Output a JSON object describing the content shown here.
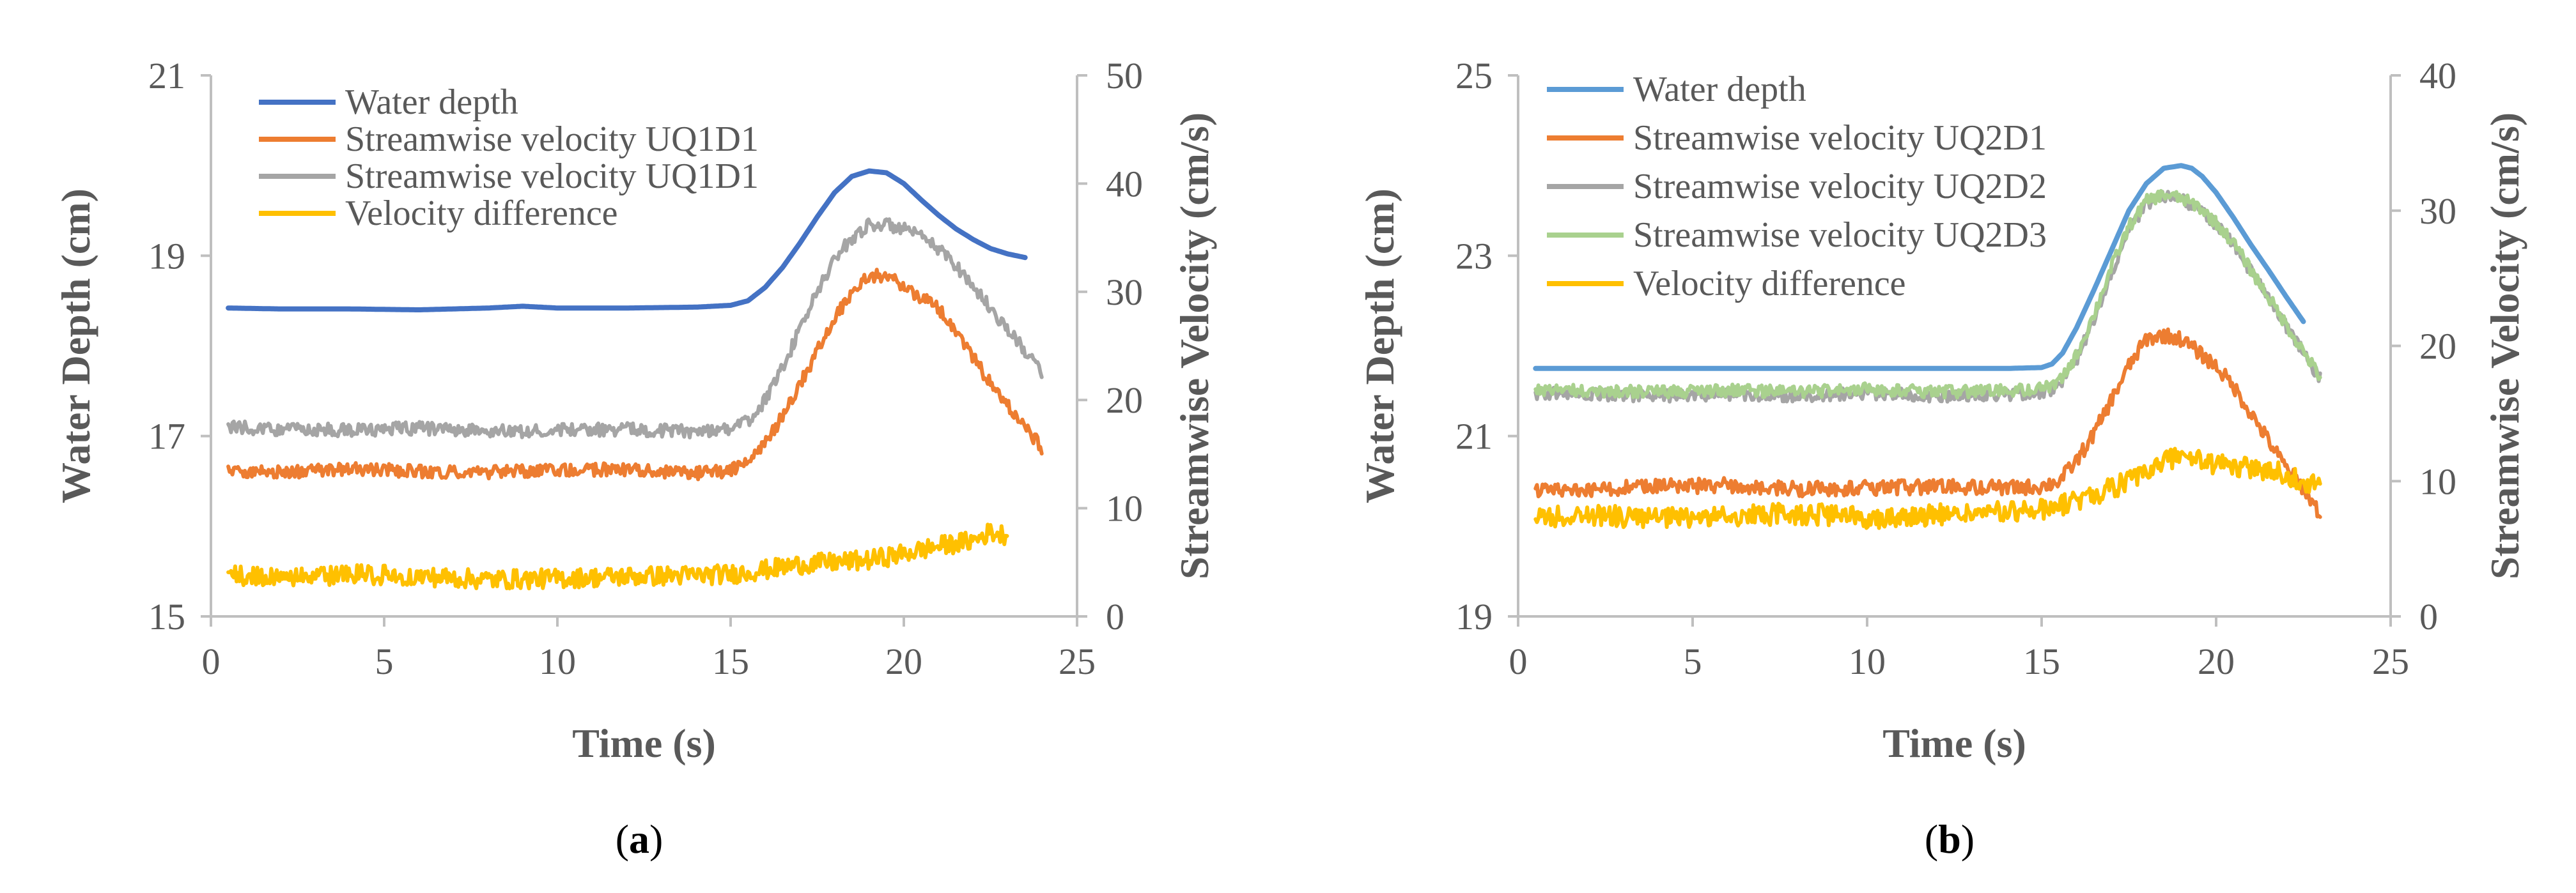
{
  "chart_data": [
    {
      "type": "line",
      "panel_label": "a",
      "xlabel": "Time (s)",
      "ylabel": "Water Depth (cm)",
      "y2label": "Streamwise Velocity (cm/s)",
      "xlim": [
        0,
        25
      ],
      "ylim": [
        15,
        21
      ],
      "y2lim": [
        0,
        50
      ],
      "xticks": [
        "0",
        "5",
        "10",
        "15",
        "20",
        "25"
      ],
      "yticks": [
        "15",
        "17",
        "19",
        "21"
      ],
      "y2ticks": [
        "0",
        "10",
        "20",
        "30",
        "40",
        "50"
      ],
      "grid": false,
      "legend_position": "top-left",
      "series": [
        {
          "name": "Water depth",
          "axis": "left",
          "color": "#4472C4",
          "noise": 0,
          "x": [
            0.5,
            2,
            4,
            6,
            8,
            9,
            10,
            12,
            14,
            15,
            15.5,
            16,
            16.5,
            17,
            17.5,
            18,
            18.5,
            19,
            19.5,
            20,
            20.5,
            21,
            21.5,
            22,
            22.5,
            23,
            23.5
          ],
          "y": [
            18.42,
            18.41,
            18.41,
            18.4,
            18.42,
            18.44,
            18.42,
            18.42,
            18.43,
            18.45,
            18.5,
            18.65,
            18.87,
            19.14,
            19.43,
            19.7,
            19.88,
            19.94,
            19.92,
            19.8,
            19.62,
            19.45,
            19.3,
            19.18,
            19.08,
            19.02,
            18.98
          ]
        },
        {
          "name": "Streamwise velocity UQ1D1",
          "axis": "right",
          "color": "#ED7D31",
          "noise": 0.6,
          "x": [
            0.5,
            2,
            4,
            6,
            8,
            10,
            12,
            14,
            15,
            15.5,
            16,
            16.5,
            17,
            17.5,
            18,
            18.5,
            19,
            19.5,
            20,
            20.5,
            21,
            21.5,
            22,
            22.5,
            23,
            23.5,
            24
          ],
          "y": [
            13.5,
            13.3,
            13.6,
            13.4,
            13.3,
            13.5,
            13.6,
            13.2,
            13.5,
            14.2,
            16,
            18.5,
            21.5,
            24.5,
            27.5,
            30,
            31.5,
            31.5,
            30.5,
            29.5,
            28.5,
            26.5,
            24,
            21.5,
            19.5,
            17.5,
            15.5
          ]
        },
        {
          "name": "Streamwise velocity UQ1D1",
          "axis": "right",
          "color": "#A5A5A5",
          "noise": 0.6,
          "x": [
            0.5,
            2,
            4,
            6,
            8,
            10,
            12,
            14,
            15,
            15.5,
            16,
            16.5,
            17,
            17.5,
            18,
            18.5,
            19,
            19.5,
            20,
            20.5,
            21,
            21.5,
            22,
            22.5,
            23,
            23.5,
            24
          ],
          "y": [
            17.5,
            17.3,
            17.2,
            17.4,
            17.1,
            17.2,
            17.3,
            17.1,
            17.4,
            18,
            20,
            23,
            26.5,
            30,
            33,
            35,
            36.2,
            36.2,
            35.8,
            35,
            34,
            32.5,
            30.5,
            28.5,
            26.5,
            24.5,
            22.5
          ]
        },
        {
          "name": "Velocity difference",
          "axis": "right",
          "color": "#FFC000",
          "noise": 0.9,
          "x": [
            0.5,
            2,
            4,
            6,
            8,
            10,
            12,
            14,
            15,
            16,
            17,
            18,
            19,
            20,
            21,
            22,
            22.5,
            23
          ],
          "y": [
            3.8,
            3.5,
            3.9,
            3.7,
            3.4,
            3.5,
            3.7,
            3.8,
            3.9,
            4.3,
            4.8,
            5,
            5.2,
            5.8,
            6.5,
            7,
            7.8,
            7.5
          ]
        }
      ]
    },
    {
      "type": "line",
      "panel_label": "b",
      "xlabel": "Time (s)",
      "ylabel": "Water Depth (cm)",
      "y2label": "Streamwise Velocity (cm/s)",
      "xlim": [
        0,
        25
      ],
      "ylim": [
        19,
        25
      ],
      "y2lim": [
        0,
        40
      ],
      "xticks": [
        "0",
        "5",
        "10",
        "15",
        "20",
        "25"
      ],
      "yticks": [
        "19",
        "21",
        "23",
        "25"
      ],
      "y2ticks": [
        "0",
        "10",
        "20",
        "30",
        "40"
      ],
      "grid": false,
      "legend_position": "top-left",
      "series": [
        {
          "name": "Water depth",
          "axis": "left",
          "color": "#5B9BD5",
          "noise": 0,
          "x": [
            0.5,
            3,
            6,
            9,
            12,
            14,
            15,
            15.3,
            15.6,
            16,
            16.5,
            17,
            17.5,
            18,
            18.5,
            19,
            19.3,
            19.6,
            20,
            20.5,
            21,
            21.5,
            22,
            22.5
          ],
          "y": [
            21.75,
            21.75,
            21.75,
            21.75,
            21.75,
            21.75,
            21.76,
            21.8,
            21.92,
            22.2,
            22.62,
            23.06,
            23.5,
            23.8,
            23.97,
            24.0,
            23.97,
            23.88,
            23.7,
            23.42,
            23.12,
            22.84,
            22.55,
            22.27
          ]
        },
        {
          "name": "Streamwise velocity UQ2D1",
          "axis": "right",
          "color": "#ED7D31",
          "noise": 0.55,
          "x": [
            0.5,
            2,
            4,
            6,
            8,
            10,
            12,
            14,
            15,
            15.5,
            16,
            16.5,
            17,
            17.5,
            18,
            18.5,
            19,
            19.5,
            20,
            20.5,
            21,
            21.5,
            22,
            22.5,
            23
          ],
          "y": [
            9.3,
            9.4,
            9.6,
            9.7,
            9.4,
            9.5,
            9.6,
            9.5,
            9.6,
            10,
            11.5,
            13.5,
            16,
            18.5,
            20.5,
            20.8,
            20.5,
            19.5,
            18.5,
            17,
            15,
            13,
            11,
            9.5,
            7.5
          ]
        },
        {
          "name": "Streamwise velocity UQ2D2",
          "axis": "right",
          "color": "#A5A5A5",
          "noise": 0.45,
          "x": [
            0.5,
            2,
            4,
            6,
            8,
            10,
            12,
            14,
            15,
            15.5,
            16,
            16.5,
            17,
            17.5,
            18,
            18.5,
            19,
            19.5,
            20,
            20.5,
            21,
            21.5,
            22,
            22.5,
            23
          ],
          "y": [
            16.5,
            16.4,
            16.3,
            16.4,
            16.3,
            16.5,
            16.3,
            16.4,
            16.5,
            17,
            19,
            22,
            25.5,
            28.5,
            30.5,
            31,
            30.8,
            30.2,
            29,
            27.5,
            25.5,
            23.5,
            21.5,
            19.5,
            17.5
          ]
        },
        {
          "name": "Streamwise velocity UQ2D3",
          "axis": "right",
          "color": "#A9D18E",
          "noise": 0.45,
          "x": [
            0.5,
            2,
            4,
            6,
            8,
            10,
            12,
            14,
            15,
            15.5,
            16,
            16.5,
            17,
            17.5,
            18,
            18.5,
            19,
            19.5,
            20,
            20.5,
            21,
            21.5,
            22,
            22.5,
            23
          ],
          "y": [
            16.8,
            16.7,
            16.6,
            16.7,
            16.6,
            16.8,
            16.6,
            16.7,
            16.8,
            17.3,
            19.3,
            22.3,
            25.8,
            28.8,
            30.7,
            31.2,
            30.9,
            30.3,
            29.1,
            27.6,
            25.6,
            23.6,
            21.6,
            19.6,
            17.6
          ]
        },
        {
          "name": "Velocity difference",
          "axis": "right",
          "color": "#FFC000",
          "noise": 0.8,
          "x": [
            0.5,
            2,
            4,
            6,
            8,
            10,
            12,
            14,
            15,
            16,
            17,
            18,
            18.5,
            19,
            19.5,
            20,
            21,
            22,
            22.5,
            23
          ],
          "y": [
            7.3,
            7.5,
            7.2,
            7.4,
            7.6,
            7.3,
            7.5,
            7.7,
            7.9,
            8.5,
            9.5,
            10.5,
            11.5,
            12,
            11.5,
            11.2,
            11,
            10.5,
            10,
            9.8
          ]
        }
      ]
    }
  ]
}
